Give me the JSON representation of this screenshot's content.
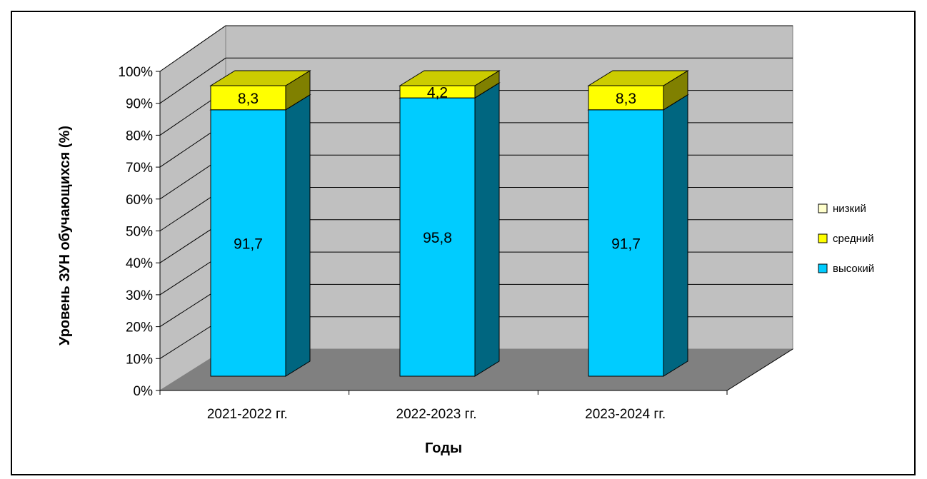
{
  "chart_data": {
    "type": "bar",
    "stacked": true,
    "percent_stacked": true,
    "three_d": true,
    "categories": [
      "2021-2022 гг.",
      "2022-2023 гг.",
      "2023-2024 гг."
    ],
    "series": [
      {
        "name": "высокий",
        "values": [
          91.7,
          95.8,
          91.7
        ],
        "labels": [
          "91,7",
          "95,8",
          "91,7"
        ],
        "color": "#00CCFF"
      },
      {
        "name": "средний",
        "values": [
          8.3,
          4.2,
          8.3
        ],
        "labels": [
          "8,3",
          "4,2",
          "8,3"
        ],
        "color": "#FFFF00"
      },
      {
        "name": "низкий",
        "values": [
          0,
          0,
          0
        ],
        "labels": [
          "",
          "",
          ""
        ],
        "color": "#FFFFCC"
      }
    ],
    "legend_order": [
      "низкий",
      "средний",
      "высокий"
    ],
    "xlabel": "Годы",
    "ylabel": "Уровень ЗУН обучающихся (%)",
    "yticks": [
      "0%",
      "10%",
      "20%",
      "30%",
      "40%",
      "50%",
      "60%",
      "70%",
      "80%",
      "90%",
      "100%"
    ],
    "ylim": [
      0,
      100
    ],
    "grid": true,
    "legend_position": "right",
    "colors": {
      "wall": "#C0C0C0",
      "floor": "#808080",
      "grid": "#000000",
      "background": "#FFFFFF"
    }
  }
}
